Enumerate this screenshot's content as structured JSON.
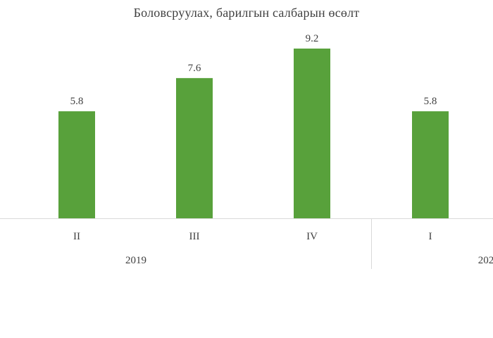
{
  "chart_data": {
    "type": "bar",
    "title": "Боловсруулах, барилгын салбарын өсөлт",
    "categories": [
      "II",
      "III",
      "IV",
      "I"
    ],
    "groups": [
      {
        "label": "2019",
        "categories": [
          "II",
          "III",
          "IV"
        ]
      },
      {
        "label": "202",
        "categories": [
          "I"
        ]
      }
    ],
    "values": [
      5.8,
      7.6,
      9.2,
      5.8
    ],
    "data_labels": [
      "5.8",
      "7.6",
      "9.2",
      "5.8"
    ],
    "ylim": [
      0,
      10
    ],
    "grid": false,
    "colors": {
      "bar": "#58a13b",
      "axis": "#d9d9d9",
      "text": "#404040"
    }
  }
}
